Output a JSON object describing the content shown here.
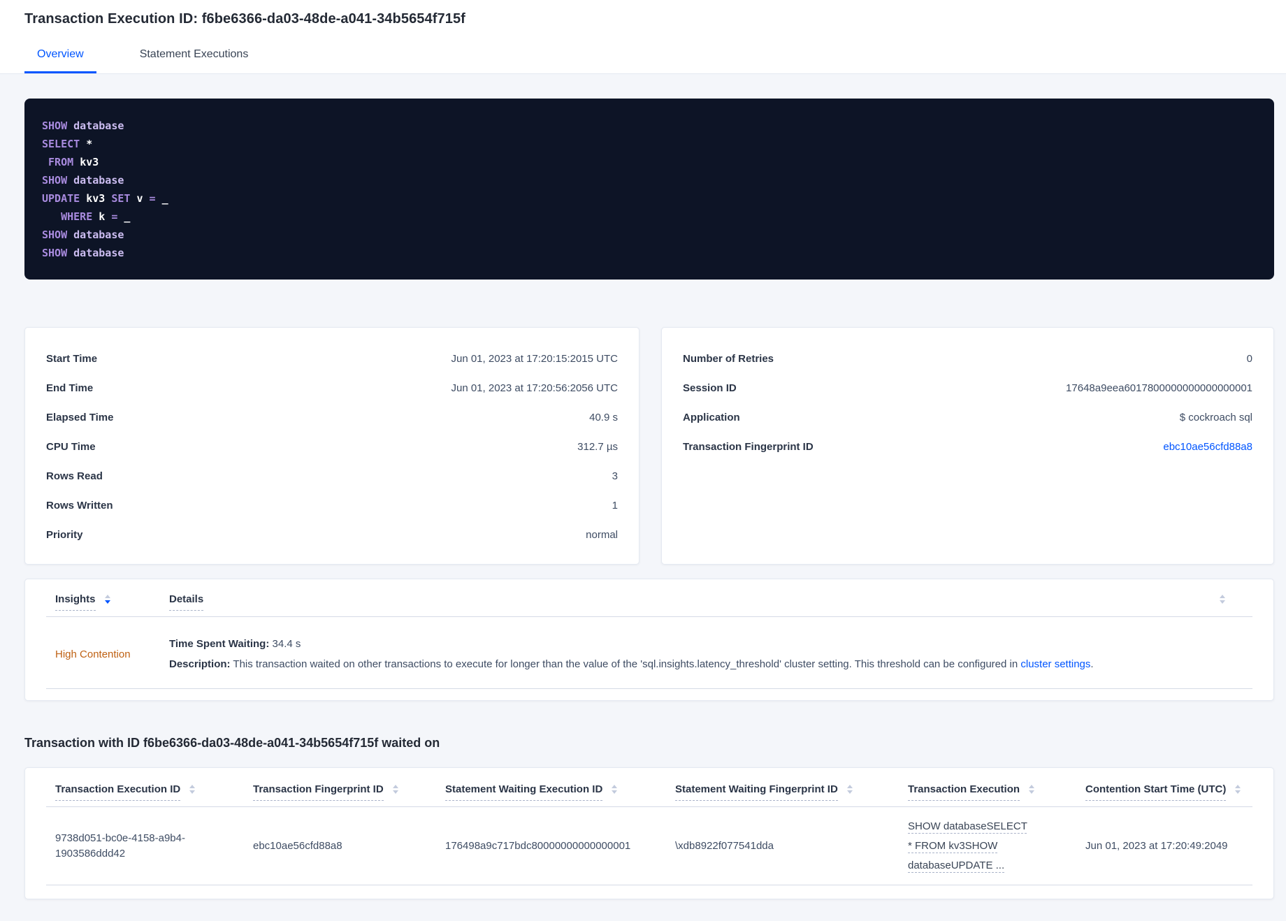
{
  "page": {
    "title": "Transaction Execution ID: f6be6366-da03-48de-a041-34b5654f715f"
  },
  "tabs": [
    {
      "label": "Overview"
    },
    {
      "label": "Statement Executions"
    }
  ],
  "sql_box": {
    "lines": [
      [
        {
          "text": "SHOW",
          "type": "kw"
        },
        {
          "text": " ",
          "type": "plain"
        },
        {
          "text": "database",
          "type": "lit"
        }
      ],
      [
        {
          "text": "SELECT",
          "type": "kw"
        },
        {
          "text": " ",
          "type": "plain"
        },
        {
          "text": "*",
          "type": "id"
        }
      ],
      [
        {
          "text": " ",
          "type": "plain"
        },
        {
          "text": "FROM",
          "type": "kw"
        },
        {
          "text": " ",
          "type": "plain"
        },
        {
          "text": "kv3",
          "type": "id"
        }
      ],
      [
        {
          "text": "SHOW",
          "type": "kw"
        },
        {
          "text": " ",
          "type": "plain"
        },
        {
          "text": "database",
          "type": "lit"
        }
      ],
      [
        {
          "text": "UPDATE",
          "type": "kw"
        },
        {
          "text": " ",
          "type": "plain"
        },
        {
          "text": "kv3",
          "type": "id"
        },
        {
          "text": " ",
          "type": "plain"
        },
        {
          "text": "SET",
          "type": "kw"
        },
        {
          "text": " ",
          "type": "plain"
        },
        {
          "text": "v",
          "type": "id"
        },
        {
          "text": " ",
          "type": "plain"
        },
        {
          "text": "=",
          "type": "kw"
        },
        {
          "text": " ",
          "type": "plain"
        },
        {
          "text": "_",
          "type": "id"
        }
      ],
      [
        {
          "text": "   ",
          "type": "plain"
        },
        {
          "text": "WHERE",
          "type": "kw"
        },
        {
          "text": " ",
          "type": "plain"
        },
        {
          "text": "k",
          "type": "id"
        },
        {
          "text": " ",
          "type": "plain"
        },
        {
          "text": "=",
          "type": "kw"
        },
        {
          "text": " ",
          "type": "plain"
        },
        {
          "text": "_",
          "type": "id"
        }
      ],
      [
        {
          "text": "SHOW",
          "type": "kw"
        },
        {
          "text": " ",
          "type": "plain"
        },
        {
          "text": "database",
          "type": "lit"
        }
      ],
      [
        {
          "text": "SHOW",
          "type": "kw"
        },
        {
          "text": " ",
          "type": "plain"
        },
        {
          "text": "database",
          "type": "lit"
        }
      ]
    ]
  },
  "summary_left": {
    "rows": [
      {
        "label": "Start Time",
        "value": "Jun 01, 2023 at 17:20:15:2015 UTC"
      },
      {
        "label": "End Time",
        "value": "Jun 01, 2023 at 17:20:56:2056 UTC"
      },
      {
        "label": "Elapsed Time",
        "value": "40.9 s"
      },
      {
        "label": "CPU Time",
        "value": "312.7 µs"
      },
      {
        "label": "Rows Read",
        "value": "3"
      },
      {
        "label": "Rows Written",
        "value": "1"
      },
      {
        "label": "Priority",
        "value": "normal"
      }
    ]
  },
  "summary_right": {
    "rows": [
      {
        "label": "Number of Retries",
        "value": "0"
      },
      {
        "label": "Session ID",
        "value": "17648a9eea6017800000000000000001"
      },
      {
        "label": "Application",
        "value": "$ cockroach sql"
      },
      {
        "label": "Transaction Fingerprint ID",
        "value": "ebc10ae56cfd88a8"
      }
    ]
  },
  "insights_table": {
    "col_insights": "Insights",
    "col_details": "Details",
    "row": {
      "insight": "High Contention",
      "waiting_label": "Time Spent Waiting:",
      "waiting_value": " 34.4 s",
      "description_label": "Description:",
      "description_text": " This transaction waited on other transactions to execute for longer than the value of the 'sql.insights.latency_threshold' cluster setting. This threshold can be configured in ",
      "description_link": "cluster settings",
      "description_suffix": "."
    }
  },
  "waited_on": {
    "heading": "Transaction with ID f6be6366-da03-48de-a041-34b5654f715f waited on",
    "columns": [
      "Transaction Execution ID",
      "Transaction Fingerprint ID",
      "Statement Waiting Execution ID",
      "Statement Waiting Fingerprint ID",
      "Transaction Execution",
      "Contention Start Time (UTC)"
    ],
    "row": {
      "transaction_execution_id": "9738d051-bc0e-4158-a9b4-1903586ddd42",
      "transaction_fingerprint_id": "ebc10ae56cfd88a8",
      "statement_waiting_execution_id": "176498a9c717bdc80000000000000001",
      "statement_waiting_fingerprint_id": "\\xdb8922f077541dda",
      "transaction_execution": "SHOW databaseSELECT * FROM kv3SHOW databaseUPDATE ...",
      "contention_start_time": "Jun 01, 2023 at 17:20:49:2049"
    }
  },
  "colors": {
    "accent_blue": "#0055ff",
    "insight_orange": "#bf6113",
    "code_background": "#0d1426",
    "code_keyword_purple": "#a98bdf"
  }
}
